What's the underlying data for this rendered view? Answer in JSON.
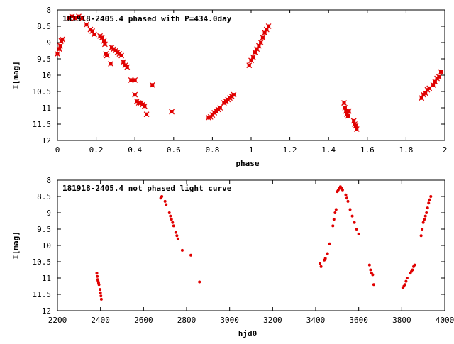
{
  "colors": {
    "points": "#e00000",
    "frame": "#000000",
    "background": "#ffffff"
  },
  "chart_data": [
    {
      "type": "scatter",
      "title": "181918-2405.4 phased with P=434.0day",
      "xlabel": "phase",
      "ylabel": "I[mag]",
      "xlim": [
        0,
        2
      ],
      "ylim": [
        12,
        8
      ],
      "y_inverted": true,
      "grid": false,
      "xticks": [
        0,
        0.2,
        0.4,
        0.6,
        0.8,
        1,
        1.2,
        1.4,
        1.6,
        1.8,
        2
      ],
      "xtick_labels": [
        "0",
        "0.2",
        "0.4",
        "0.6",
        "0.8",
        "1",
        "1.2",
        "1.4",
        "1.6",
        "1.8",
        "2"
      ],
      "yticks": [
        8,
        8.5,
        9,
        9.5,
        10,
        10.5,
        11,
        11.5,
        12
      ],
      "ytick_labels": [
        "8",
        "8.5",
        "9",
        "9.5",
        "10",
        "10.5",
        "11",
        "11.5",
        "12"
      ],
      "marker": "cross",
      "series": [
        {
          "points": [
            [
              0.0,
              9.35
            ],
            [
              0.01,
              9.2
            ],
            [
              0.015,
              9.1
            ],
            [
              0.02,
              8.95
            ],
            [
              0.025,
              8.9
            ],
            [
              0.06,
              8.25
            ],
            [
              0.075,
              8.2
            ],
            [
              0.09,
              8.25
            ],
            [
              0.11,
              8.2
            ],
            [
              0.13,
              8.25
            ],
            [
              0.15,
              8.45
            ],
            [
              0.17,
              8.6
            ],
            [
              0.18,
              8.65
            ],
            [
              0.19,
              8.75
            ],
            [
              0.22,
              8.8
            ],
            [
              0.23,
              8.85
            ],
            [
              0.24,
              8.95
            ],
            [
              0.245,
              9.05
            ],
            [
              0.25,
              9.35
            ],
            [
              0.255,
              9.4
            ],
            [
              0.28,
              9.15
            ],
            [
              0.29,
              9.2
            ],
            [
              0.3,
              9.25
            ],
            [
              0.31,
              9.3
            ],
            [
              0.32,
              9.35
            ],
            [
              0.33,
              9.4
            ],
            [
              0.275,
              9.65
            ],
            [
              0.34,
              9.6
            ],
            [
              0.35,
              9.7
            ],
            [
              0.36,
              9.75
            ],
            [
              0.38,
              10.15
            ],
            [
              0.4,
              10.15
            ],
            [
              0.4,
              10.6
            ],
            [
              0.41,
              10.8
            ],
            [
              0.42,
              10.85
            ],
            [
              0.43,
              10.85
            ],
            [
              0.44,
              10.9
            ],
            [
              0.45,
              10.95
            ],
            [
              0.46,
              11.2
            ],
            [
              0.49,
              10.3
            ],
            [
              0.59,
              11.12
            ],
            [
              0.78,
              11.3
            ],
            [
              0.79,
              11.28
            ],
            [
              0.8,
              11.22
            ],
            [
              0.81,
              11.15
            ],
            [
              0.82,
              11.1
            ],
            [
              0.83,
              11.05
            ],
            [
              0.84,
              11.0
            ],
            [
              0.86,
              10.85
            ],
            [
              0.87,
              10.8
            ],
            [
              0.88,
              10.75
            ],
            [
              0.89,
              10.7
            ],
            [
              0.9,
              10.65
            ],
            [
              0.91,
              10.6
            ],
            [
              0.99,
              9.7
            ],
            [
              1.0,
              9.55
            ],
            [
              1.01,
              9.45
            ],
            [
              1.02,
              9.3
            ],
            [
              1.03,
              9.2
            ],
            [
              1.04,
              9.1
            ],
            [
              1.05,
              9.0
            ],
            [
              1.06,
              8.85
            ],
            [
              1.07,
              8.7
            ],
            [
              1.08,
              8.6
            ],
            [
              1.09,
              8.5
            ],
            [
              1.48,
              10.85
            ],
            [
              1.485,
              11.0
            ],
            [
              1.49,
              11.1
            ],
            [
              1.495,
              11.2
            ],
            [
              1.5,
              11.25
            ],
            [
              1.505,
              11.1
            ],
            [
              1.53,
              11.4
            ],
            [
              1.535,
              11.5
            ],
            [
              1.54,
              11.55
            ],
            [
              1.545,
              11.65
            ],
            [
              1.88,
              10.7
            ],
            [
              1.89,
              10.6
            ],
            [
              1.9,
              10.55
            ],
            [
              1.91,
              10.45
            ],
            [
              1.92,
              10.4
            ],
            [
              1.94,
              10.3
            ],
            [
              1.95,
              10.2
            ],
            [
              1.96,
              10.1
            ],
            [
              1.97,
              10.05
            ],
            [
              1.98,
              9.9
            ]
          ]
        }
      ]
    },
    {
      "type": "scatter",
      "title": "181918-2405.4 not phased light curve",
      "xlabel": "hjd0",
      "ylabel": "I[mag]",
      "xlim": [
        2200,
        4000
      ],
      "ylim": [
        12,
        8
      ],
      "y_inverted": true,
      "grid": false,
      "xticks": [
        2200,
        2400,
        2600,
        2800,
        3000,
        3200,
        3400,
        3600,
        3800,
        4000
      ],
      "xtick_labels": [
        "2200",
        "2400",
        "2600",
        "2800",
        "3000",
        "3200",
        "3400",
        "3600",
        "3800",
        "4000"
      ],
      "yticks": [
        8,
        8.5,
        9,
        9.5,
        10,
        10.5,
        11,
        11.5,
        12
      ],
      "ytick_labels": [
        "8",
        "8.5",
        "9",
        "9.5",
        "10",
        "10.5",
        "11",
        "11.5",
        "12"
      ],
      "marker": "dot",
      "series": [
        {
          "points": [
            [
              2383,
              10.85
            ],
            [
              2385,
              10.95
            ],
            [
              2387,
              11.05
            ],
            [
              2389,
              11.1
            ],
            [
              2391,
              11.15
            ],
            [
              2393,
              11.2
            ],
            [
              2398,
              11.35
            ],
            [
              2400,
              11.45
            ],
            [
              2402,
              11.55
            ],
            [
              2404,
              11.65
            ],
            [
              2680,
              8.55
            ],
            [
              2685,
              8.5
            ],
            [
              2700,
              8.65
            ],
            [
              2705,
              8.75
            ],
            [
              2720,
              9.0
            ],
            [
              2725,
              9.1
            ],
            [
              2730,
              9.2
            ],
            [
              2735,
              9.3
            ],
            [
              2740,
              9.4
            ],
            [
              2750,
              9.6
            ],
            [
              2755,
              9.7
            ],
            [
              2760,
              9.8
            ],
            [
              2780,
              10.15
            ],
            [
              2820,
              10.3
            ],
            [
              2860,
              11.12
            ],
            [
              3420,
              10.55
            ],
            [
              3425,
              10.65
            ],
            [
              3440,
              10.45
            ],
            [
              3445,
              10.4
            ],
            [
              3455,
              10.25
            ],
            [
              3465,
              9.95
            ],
            [
              3480,
              9.4
            ],
            [
              3485,
              9.2
            ],
            [
              3490,
              9.0
            ],
            [
              3495,
              8.9
            ],
            [
              3500,
              8.35
            ],
            [
              3505,
              8.3
            ],
            [
              3510,
              8.25
            ],
            [
              3515,
              8.2
            ],
            [
              3520,
              8.25
            ],
            [
              3525,
              8.3
            ],
            [
              3540,
              8.45
            ],
            [
              3545,
              8.55
            ],
            [
              3550,
              8.65
            ],
            [
              3560,
              8.9
            ],
            [
              3570,
              9.1
            ],
            [
              3580,
              9.3
            ],
            [
              3590,
              9.5
            ],
            [
              3600,
              9.65
            ],
            [
              3650,
              10.6
            ],
            [
              3655,
              10.75
            ],
            [
              3660,
              10.85
            ],
            [
              3665,
              10.9
            ],
            [
              3670,
              11.2
            ],
            [
              3805,
              11.3
            ],
            [
              3810,
              11.25
            ],
            [
              3815,
              11.2
            ],
            [
              3820,
              11.1
            ],
            [
              3825,
              11.0
            ],
            [
              3840,
              10.85
            ],
            [
              3845,
              10.8
            ],
            [
              3850,
              10.75
            ],
            [
              3855,
              10.65
            ],
            [
              3860,
              10.6
            ],
            [
              3890,
              9.7
            ],
            [
              3895,
              9.5
            ],
            [
              3900,
              9.3
            ],
            [
              3905,
              9.2
            ],
            [
              3910,
              9.1
            ],
            [
              3915,
              9.0
            ],
            [
              3920,
              8.85
            ],
            [
              3925,
              8.7
            ],
            [
              3930,
              8.6
            ],
            [
              3935,
              8.5
            ]
          ]
        }
      ]
    }
  ]
}
